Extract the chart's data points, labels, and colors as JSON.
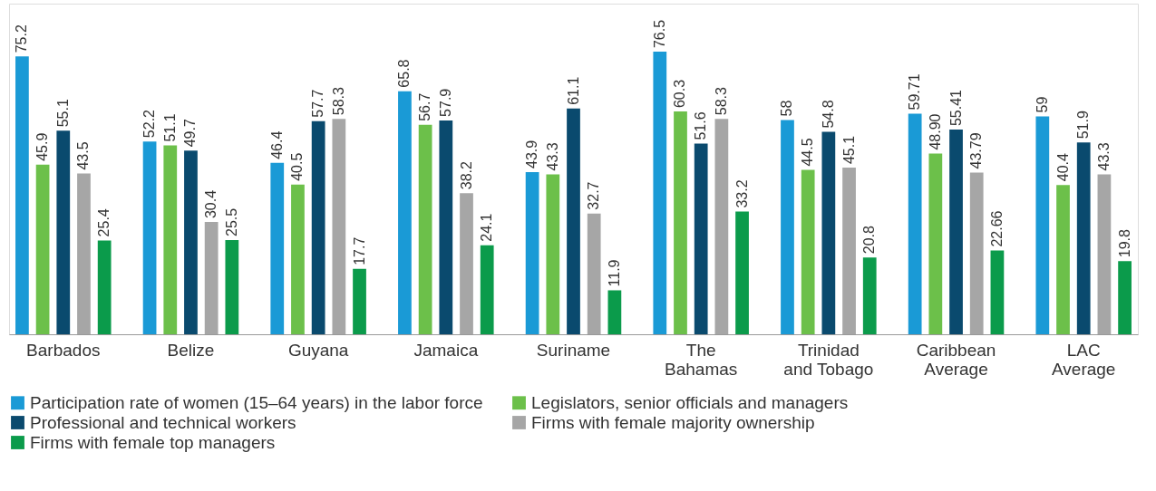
{
  "chart_data": {
    "type": "bar",
    "categories": [
      "Barbados",
      "Belize",
      "Guyana",
      "Jamaica",
      "Suriname",
      "The Bahamas",
      "Trinidad and Tobago",
      "Caribbean Average",
      "LAC Average"
    ],
    "series": [
      {
        "name": "Participation rate of women (15–64 years) in the labor force",
        "color": "#1a9ad6",
        "values": [
          75.2,
          52.2,
          46.4,
          65.8,
          43.9,
          76.5,
          58,
          59.71,
          59
        ],
        "value_labels": [
          "75.2",
          "52.2",
          "46.4",
          "65.8",
          "43.9",
          "76.5",
          "58",
          "59.71",
          "59"
        ]
      },
      {
        "name": "Legislators, senior officials and managers",
        "color": "#6cc04a",
        "values": [
          45.9,
          51.1,
          40.5,
          56.7,
          43.3,
          60.3,
          44.5,
          48.9,
          40.4
        ],
        "value_labels": [
          "45.9",
          "51.1",
          "40.5",
          "56.7",
          "43.3",
          "60.3",
          "44.5",
          "48.90",
          "40.4"
        ]
      },
      {
        "name": "Professional and technical workers",
        "color": "#0a4a6e",
        "values": [
          55.1,
          49.7,
          57.7,
          57.9,
          61.1,
          51.6,
          54.8,
          55.41,
          51.9
        ],
        "value_labels": [
          "55.1",
          "49.7",
          "57.7",
          "57.9",
          "61.1",
          "51.6",
          "54.8",
          "55.41",
          "51.9"
        ]
      },
      {
        "name": "Firms with female majority ownership",
        "color": "#a6a6a6",
        "values": [
          43.5,
          30.4,
          58.3,
          38.2,
          32.7,
          58.3,
          45.1,
          43.79,
          43.3
        ],
        "value_labels": [
          "43.5",
          "30.4",
          "58.3",
          "38.2",
          "32.7",
          "58.3",
          "45.1",
          "43.79",
          "43.3"
        ]
      },
      {
        "name": "Firms with female top managers",
        "color": "#0b9b4b",
        "values": [
          25.4,
          25.5,
          17.7,
          24.1,
          11.9,
          33.2,
          20.8,
          22.66,
          19.8
        ],
        "value_labels": [
          "25.4",
          "25.5",
          "17.7",
          "24.1",
          "11.9",
          "33.2",
          "20.8",
          "22.66",
          "19.8"
        ]
      }
    ],
    "legend": "bottom"
  }
}
